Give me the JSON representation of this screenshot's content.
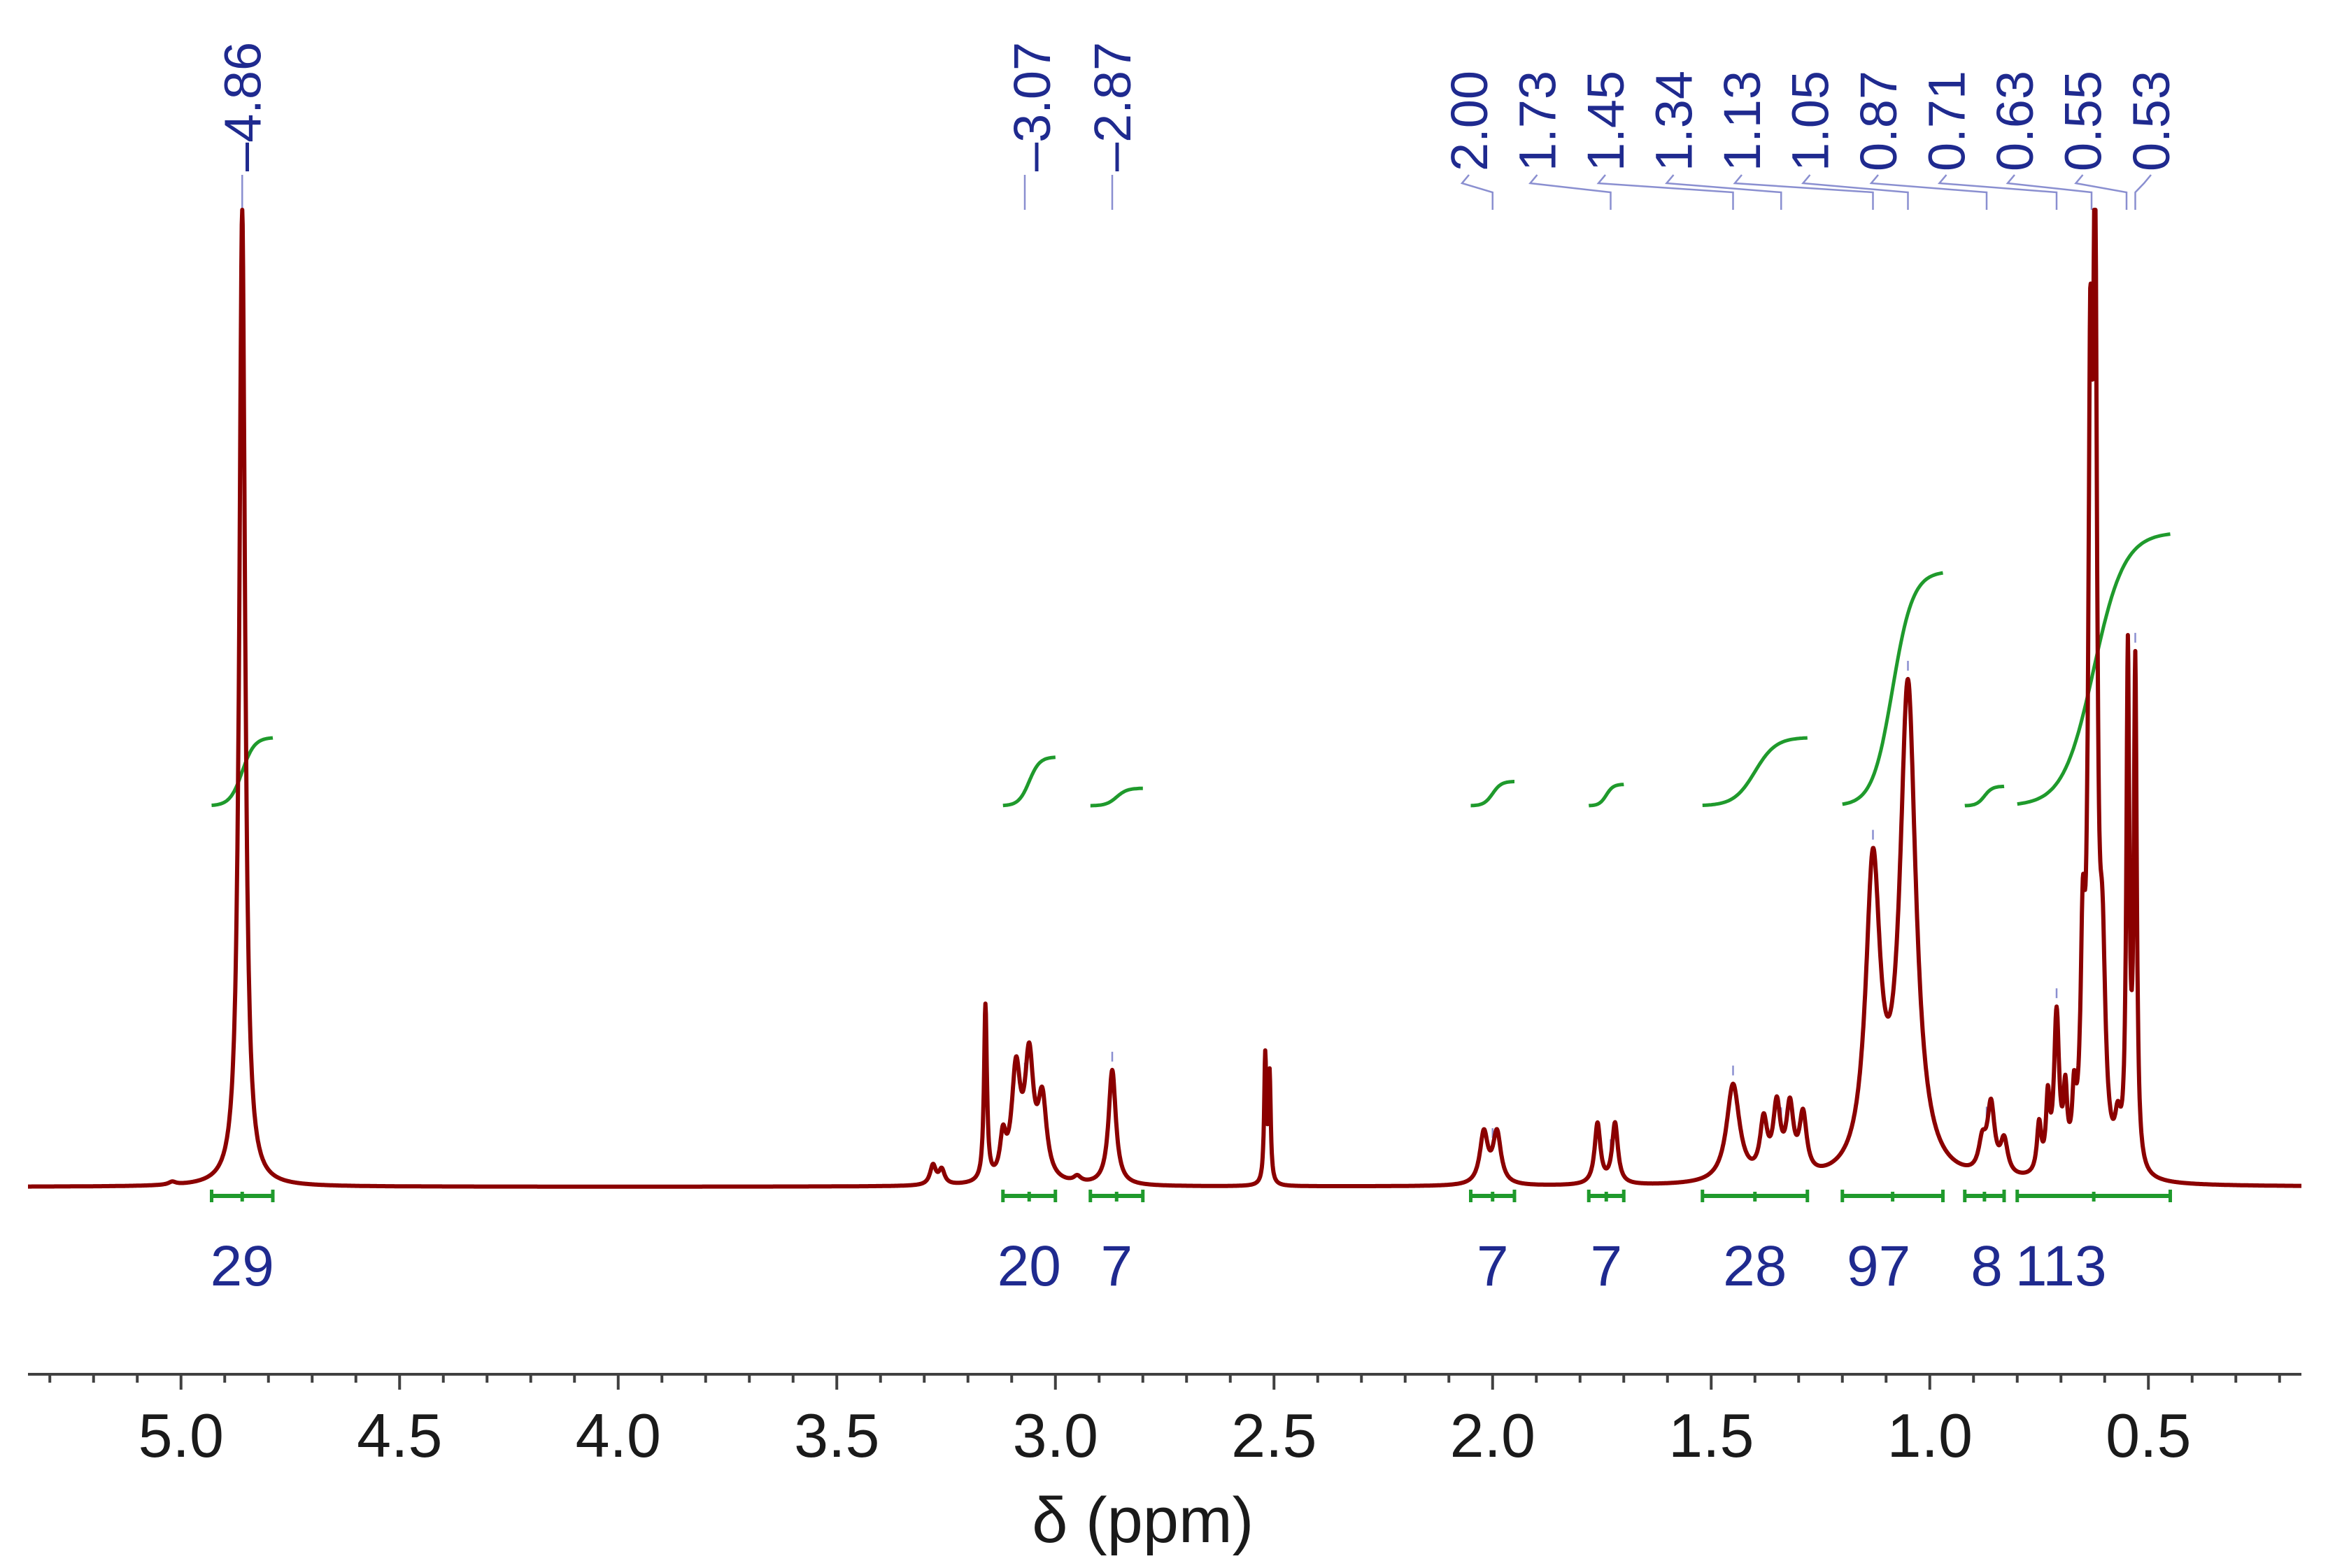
{
  "chart_data": {
    "type": "line",
    "title": "",
    "xlabel": "δ (ppm)",
    "ylabel": "",
    "xlim": [
      5.35,
      0.15
    ],
    "x_reversed": true,
    "grid": false,
    "legend": "none",
    "colors": {
      "spectrum": "#8b0000",
      "integral": "#1f9a2c",
      "labels": "#1f2a8f"
    },
    "x_ticks": [
      {
        "value": 5.0,
        "label": "5.0"
      },
      {
        "value": 4.5,
        "label": "4.5"
      },
      {
        "value": 4.0,
        "label": "4.0"
      },
      {
        "value": 3.5,
        "label": "3.5"
      },
      {
        "value": 3.0,
        "label": "3.0"
      },
      {
        "value": 2.5,
        "label": "2.5"
      },
      {
        "value": 2.0,
        "label": "2.0"
      },
      {
        "value": 1.5,
        "label": "1.5"
      },
      {
        "value": 1.0,
        "label": "1.0"
      },
      {
        "value": 0.5,
        "label": "0.5"
      }
    ],
    "peak_labels": [
      {
        "label": "4.86",
        "value": 4.86
      },
      {
        "label": "3.07",
        "value": 3.07
      },
      {
        "label": "2.87",
        "value": 2.87
      },
      {
        "label": "2.00",
        "value": 2.0
      },
      {
        "label": "1.73",
        "value": 1.73
      },
      {
        "label": "1.45",
        "value": 1.45
      },
      {
        "label": "1.34",
        "value": 1.34
      },
      {
        "label": "1.13",
        "value": 1.13
      },
      {
        "label": "1.05",
        "value": 1.05
      },
      {
        "label": "0.87",
        "value": 0.87
      },
      {
        "label": "0.71",
        "value": 0.71
      },
      {
        "label": "0.63",
        "value": 0.63
      },
      {
        "label": "0.55",
        "value": 0.55
      },
      {
        "label": "0.53",
        "value": 0.53
      }
    ],
    "peaks": [
      {
        "x": 4.86,
        "h": 1.0,
        "w": 0.008
      },
      {
        "x": 5.02,
        "h": 0.003,
        "w": 0.01
      },
      {
        "x": 3.28,
        "h": 0.02,
        "w": 0.008
      },
      {
        "x": 3.26,
        "h": 0.015,
        "w": 0.008
      },
      {
        "x": 3.16,
        "h": 0.18,
        "w": 0.004
      },
      {
        "x": 3.12,
        "h": 0.04,
        "w": 0.008
      },
      {
        "x": 3.09,
        "h": 0.11,
        "w": 0.012
      },
      {
        "x": 3.06,
        "h": 0.12,
        "w": 0.012
      },
      {
        "x": 3.03,
        "h": 0.08,
        "w": 0.012
      },
      {
        "x": 2.95,
        "h": 0.006,
        "w": 0.01
      },
      {
        "x": 2.87,
        "h": 0.118,
        "w": 0.01
      },
      {
        "x": 2.52,
        "h": 0.13,
        "w": 0.003
      },
      {
        "x": 2.51,
        "h": 0.11,
        "w": 0.003
      },
      {
        "x": 2.02,
        "h": 0.052,
        "w": 0.011
      },
      {
        "x": 1.99,
        "h": 0.052,
        "w": 0.011
      },
      {
        "x": 1.76,
        "h": 0.062,
        "w": 0.008
      },
      {
        "x": 1.72,
        "h": 0.062,
        "w": 0.008
      },
      {
        "x": 1.45,
        "h": 0.1,
        "w": 0.018
      },
      {
        "x": 1.38,
        "h": 0.055,
        "w": 0.01
      },
      {
        "x": 1.35,
        "h": 0.07,
        "w": 0.01
      },
      {
        "x": 1.32,
        "h": 0.068,
        "w": 0.01
      },
      {
        "x": 1.29,
        "h": 0.06,
        "w": 0.01
      },
      {
        "x": 1.13,
        "h": 0.31,
        "w": 0.02
      },
      {
        "x": 1.05,
        "h": 0.5,
        "w": 0.022
      },
      {
        "x": 0.88,
        "h": 0.03,
        "w": 0.01
      },
      {
        "x": 0.86,
        "h": 0.07,
        "w": 0.01
      },
      {
        "x": 0.83,
        "h": 0.035,
        "w": 0.01
      },
      {
        "x": 0.75,
        "h": 0.05,
        "w": 0.006
      },
      {
        "x": 0.73,
        "h": 0.07,
        "w": 0.005
      },
      {
        "x": 0.71,
        "h": 0.16,
        "w": 0.007
      },
      {
        "x": 0.69,
        "h": 0.07,
        "w": 0.005
      },
      {
        "x": 0.67,
        "h": 0.06,
        "w": 0.005
      },
      {
        "x": 0.65,
        "h": 0.2,
        "w": 0.006
      },
      {
        "x": 0.633,
        "h": 0.7,
        "w": 0.0055
      },
      {
        "x": 0.622,
        "h": 0.88,
        "w": 0.0055
      },
      {
        "x": 0.605,
        "h": 0.18,
        "w": 0.008
      },
      {
        "x": 0.57,
        "h": 0.04,
        "w": 0.008
      },
      {
        "x": 0.547,
        "h": 0.52,
        "w": 0.004
      },
      {
        "x": 0.53,
        "h": 0.51,
        "w": 0.004
      }
    ],
    "integrals": [
      {
        "from": 4.93,
        "to": 4.79,
        "value": "29",
        "y0": 0.39,
        "rise": 0.07
      },
      {
        "from": 3.12,
        "to": 3.0,
        "value": "20",
        "y0": 0.39,
        "rise": 0.05
      },
      {
        "from": 2.92,
        "to": 2.8,
        "value": "7",
        "y0": 0.39,
        "rise": 0.018
      },
      {
        "from": 2.05,
        "to": 1.95,
        "value": "7",
        "y0": 0.39,
        "rise": 0.025
      },
      {
        "from": 1.78,
        "to": 1.7,
        "value": "7",
        "y0": 0.39,
        "rise": 0.022
      },
      {
        "from": 1.52,
        "to": 1.28,
        "value": "28",
        "y0": 0.39,
        "rise": 0.07
      },
      {
        "from": 1.2,
        "to": 0.97,
        "value": "97",
        "y0": 0.39,
        "rise": 0.24
      },
      {
        "from": 0.92,
        "to": 0.83,
        "value": "8",
        "y0": 0.39,
        "rise": 0.02
      },
      {
        "from": 0.8,
        "to": 0.45,
        "value": "113",
        "y0": 0.39,
        "rise": 0.28
      }
    ]
  }
}
